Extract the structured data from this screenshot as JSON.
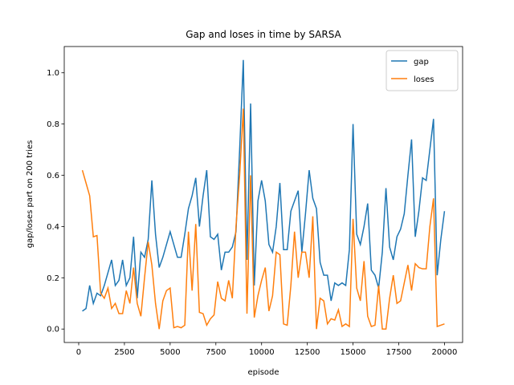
{
  "chart_data": {
    "type": "line",
    "title": "Gap and loses in time by SARSA",
    "x_label": "episode",
    "y_label": "gap/loses part on 200 tries",
    "x": [
      200,
      400,
      600,
      800,
      1000,
      1200,
      1400,
      1600,
      1800,
      2000,
      2200,
      2400,
      2600,
      2800,
      3000,
      3200,
      3400,
      3600,
      3800,
      4000,
      4200,
      4400,
      4600,
      4800,
      5000,
      5200,
      5400,
      5600,
      5800,
      6000,
      6200,
      6400,
      6600,
      6800,
      7000,
      7200,
      7400,
      7600,
      7800,
      8000,
      8200,
      8400,
      8600,
      8800,
      9000,
      9200,
      9400,
      9600,
      9800,
      10000,
      10200,
      10400,
      10600,
      10800,
      11000,
      11200,
      11400,
      11600,
      11800,
      12000,
      12200,
      12400,
      12600,
      12800,
      13000,
      13200,
      13400,
      13600,
      13800,
      14000,
      14200,
      14400,
      14600,
      14800,
      15000,
      15200,
      15400,
      15600,
      15800,
      16000,
      16200,
      16400,
      16600,
      16800,
      17000,
      17200,
      17400,
      17600,
      17800,
      18000,
      18200,
      18400,
      18600,
      18800,
      19000,
      19200,
      19400,
      19600,
      19800,
      20000
    ],
    "series": [
      {
        "name": "gap",
        "color": "#1f77b4",
        "values": [
          0.07,
          0.08,
          0.17,
          0.1,
          0.14,
          0.13,
          0.17,
          0.22,
          0.27,
          0.17,
          0.19,
          0.27,
          0.17,
          0.2,
          0.36,
          0.12,
          0.3,
          0.28,
          0.35,
          0.58,
          0.37,
          0.24,
          0.28,
          0.33,
          0.38,
          0.33,
          0.28,
          0.28,
          0.37,
          0.47,
          0.52,
          0.59,
          0.4,
          0.52,
          0.62,
          0.36,
          0.35,
          0.37,
          0.23,
          0.3,
          0.3,
          0.32,
          0.38,
          0.7,
          1.05,
          0.27,
          0.88,
          0.17,
          0.5,
          0.58,
          0.5,
          0.33,
          0.3,
          0.4,
          0.57,
          0.31,
          0.31,
          0.46,
          0.5,
          0.54,
          0.3,
          0.45,
          0.62,
          0.51,
          0.47,
          0.26,
          0.21,
          0.21,
          0.11,
          0.18,
          0.17,
          0.18,
          0.17,
          0.31,
          0.8,
          0.37,
          0.33,
          0.4,
          0.49,
          0.23,
          0.21,
          0.16,
          0.3,
          0.55,
          0.32,
          0.27,
          0.36,
          0.39,
          0.45,
          0.6,
          0.74,
          0.36,
          0.46,
          0.59,
          0.58,
          0.7,
          0.82,
          0.21,
          0.35,
          0.46
        ]
      },
      {
        "name": "loses",
        "color": "#ff7f0e",
        "values": [
          0.62,
          0.57,
          0.52,
          0.36,
          0.365,
          0.14,
          0.12,
          0.16,
          0.08,
          0.1,
          0.06,
          0.06,
          0.15,
          0.1,
          0.24,
          0.1,
          0.05,
          0.2,
          0.34,
          0.25,
          0.1,
          0.0,
          0.11,
          0.15,
          0.16,
          0.005,
          0.01,
          0.005,
          0.015,
          0.38,
          0.15,
          0.41,
          0.065,
          0.06,
          0.015,
          0.04,
          0.055,
          0.185,
          0.12,
          0.11,
          0.19,
          0.12,
          0.4,
          0.6,
          0.86,
          0.06,
          0.6,
          0.045,
          0.13,
          0.19,
          0.24,
          0.07,
          0.13,
          0.3,
          0.29,
          0.02,
          0.015,
          0.17,
          0.38,
          0.2,
          0.3,
          0.3,
          0.2,
          0.44,
          0.0,
          0.12,
          0.11,
          0.02,
          0.04,
          0.035,
          0.075,
          0.01,
          0.02,
          0.01,
          0.43,
          0.16,
          0.11,
          0.265,
          0.05,
          0.01,
          0.015,
          0.17,
          0.0,
          0.0,
          0.12,
          0.21,
          0.1,
          0.11,
          0.18,
          0.25,
          0.15,
          0.255,
          0.24,
          0.235,
          0.235,
          0.4,
          0.51,
          0.01,
          0.015,
          0.02
        ]
      }
    ],
    "xlim": [
      -790,
      20990
    ],
    "ylim": [
      -0.0525,
      1.1025
    ],
    "xticks": [
      0,
      2500,
      5000,
      7500,
      10000,
      12500,
      15000,
      17500,
      20000
    ],
    "yticks": [
      {
        "value": 0,
        "label": "0.0"
      },
      {
        "value": 0.2,
        "label": "0.2"
      },
      {
        "value": 0.4,
        "label": "0.4"
      },
      {
        "value": 0.6,
        "label": "0.6"
      },
      {
        "value": 0.8,
        "label": "0.8"
      },
      {
        "value": 1.0,
        "label": "1.0"
      }
    ],
    "legend": "upper right",
    "grid": false
  }
}
